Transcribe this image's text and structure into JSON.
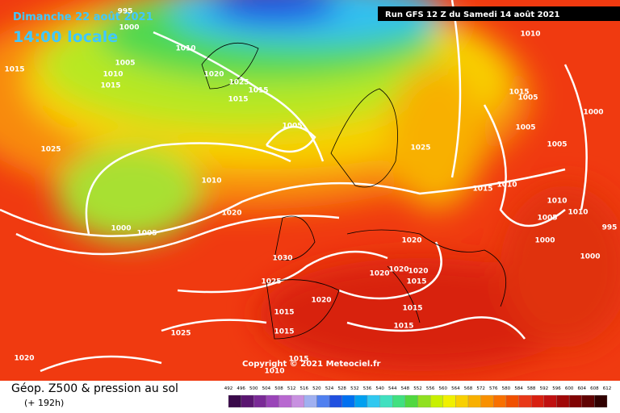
{
  "header": {
    "date": "Dimanche 22 août 2021",
    "time": "14:00 locale",
    "run": "Run GFS 12 Z du Samedi 14 août 2021"
  },
  "copyright": "Copyright © 2021 Meteociel.fr",
  "footer": {
    "title": "Géop. Z500 & pression au sol",
    "lead": "(+ 192h)"
  },
  "isobar_labels": [
    "995",
    "1000",
    "1010",
    "1005",
    "1010",
    "1015",
    "1015",
    "1020",
    "1025",
    "1015",
    "1015",
    "1005",
    "1025",
    "1010",
    "1020",
    "1000",
    "1005",
    "1030",
    "1025",
    "1020",
    "1015",
    "1015",
    "1025",
    "1020",
    "1015",
    "1010",
    "1010",
    "1015",
    "1005",
    "1000",
    "1005",
    "1005",
    "1025",
    "1015",
    "1010",
    "1010",
    "1010",
    "1005",
    "995",
    "1000",
    "1000",
    "1020",
    "1020",
    "1020",
    "1020",
    "1015",
    "1015",
    "1015"
  ],
  "legend": {
    "ticks": [
      492,
      496,
      500,
      504,
      508,
      512,
      516,
      520,
      524,
      528,
      532,
      536,
      540,
      544,
      548,
      552,
      556,
      560,
      564,
      568,
      572,
      576,
      580,
      584,
      588,
      592,
      596,
      600,
      604,
      608,
      612
    ],
    "colors": [
      "#3a0a4a",
      "#5a1670",
      "#7a2a96",
      "#9a44b8",
      "#b868d0",
      "#c890e0",
      "#a0b0f0",
      "#5080f0",
      "#2050e0",
      "#0070f0",
      "#00a0f0",
      "#30c8f0",
      "#40e0c0",
      "#40e080",
      "#50d840",
      "#90e020",
      "#c8f000",
      "#f0f000",
      "#f8d000",
      "#f8b000",
      "#f89000",
      "#f87000",
      "#f05000",
      "#e83818",
      "#d82010",
      "#c01010",
      "#a00808",
      "#800404",
      "#600202",
      "#300000"
    ]
  }
}
